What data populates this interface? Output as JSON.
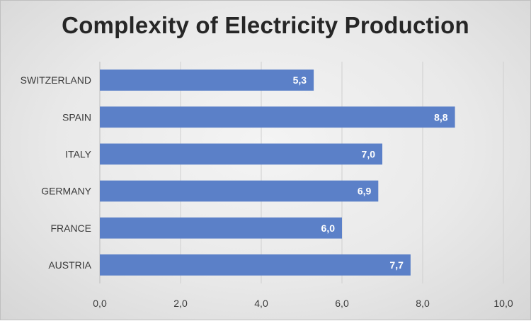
{
  "chart_data": {
    "type": "bar",
    "orientation": "horizontal",
    "title": "Complexity of Electricity Production",
    "categories": [
      "SWITZERLAND",
      "SPAIN",
      "ITALY",
      "GERMANY",
      "FRANCE",
      "AUSTRIA"
    ],
    "values": [
      5.3,
      8.8,
      7.0,
      6.9,
      6.0,
      7.7
    ],
    "value_labels": [
      "5,3",
      "8,8",
      "7,0",
      "6,9",
      "6,0",
      "7,7"
    ],
    "xlim": [
      0,
      10
    ],
    "x_ticks": [
      0,
      2,
      4,
      6,
      8,
      10
    ],
    "x_tick_labels": [
      "0,0",
      "2,0",
      "4,0",
      "6,0",
      "8,0",
      "10,0"
    ],
    "grid": true,
    "legend": "none",
    "bar_color": "#5b80c8"
  }
}
